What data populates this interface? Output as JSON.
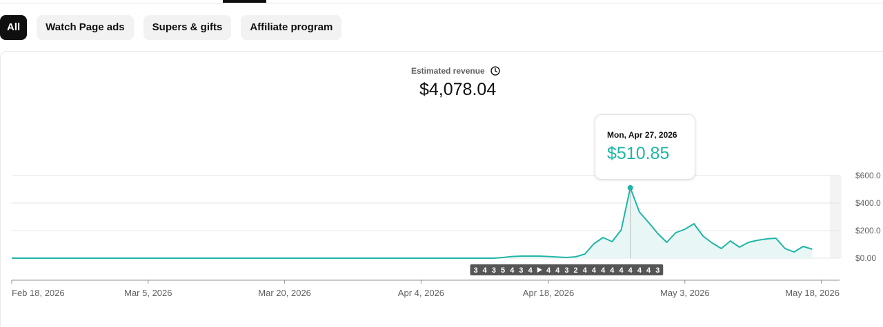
{
  "filters": {
    "chips": [
      {
        "label": "All",
        "active": true
      },
      {
        "label": "Watch Page ads",
        "active": false
      },
      {
        "label": "Supers & gifts",
        "active": false
      },
      {
        "label": "Affiliate program",
        "active": false
      }
    ]
  },
  "metric": {
    "label": "Estimated revenue",
    "value": "$4,078.04",
    "icon": "clock-icon"
  },
  "tooltip": {
    "date": "Mon, Apr 27, 2026",
    "value": "$510.85"
  },
  "colors": {
    "line": "#1eb5a6",
    "fill": "#e8f7f5",
    "marker_bg": "#555555"
  },
  "chart_data": {
    "type": "area",
    "start_date": "2026-02-18",
    "end_date": "2026-05-20",
    "x_tick_labels": [
      "Feb 18, 2026",
      "Mar 5, 2026",
      "Mar 20, 2026",
      "Apr 4, 2026",
      "Apr 18, 2026",
      "May 3, 2026",
      "May 18, 2026"
    ],
    "y_tick_labels": [
      "$600.0",
      "$400.0",
      "$200.0",
      "$0.00"
    ],
    "y_ticks": [
      600,
      400,
      200,
      0
    ],
    "ylim": [
      0,
      600
    ],
    "grid": true,
    "series": [
      {
        "values": [
          {
            "date": "2026-02-18",
            "value": 0
          },
          {
            "date": "2026-04-05",
            "value": 0
          },
          {
            "date": "2026-04-12",
            "value": 0
          },
          {
            "date": "2026-04-13",
            "value": 5
          },
          {
            "date": "2026-04-14",
            "value": 12
          },
          {
            "date": "2026-04-15",
            "value": 15
          },
          {
            "date": "2026-04-16",
            "value": 15
          },
          {
            "date": "2026-04-17",
            "value": 15
          },
          {
            "date": "2026-04-18",
            "value": 12
          },
          {
            "date": "2026-04-19",
            "value": 8
          },
          {
            "date": "2026-04-20",
            "value": 5
          },
          {
            "date": "2026-04-21",
            "value": 10
          },
          {
            "date": "2026-04-22",
            "value": 30
          },
          {
            "date": "2026-04-23",
            "value": 105
          },
          {
            "date": "2026-04-24",
            "value": 150
          },
          {
            "date": "2026-04-25",
            "value": 120
          },
          {
            "date": "2026-04-26",
            "value": 205
          },
          {
            "date": "2026-04-27",
            "value": 510.85
          },
          {
            "date": "2026-04-28",
            "value": 335
          },
          {
            "date": "2026-04-29",
            "value": 260
          },
          {
            "date": "2026-04-30",
            "value": 180
          },
          {
            "date": "2026-05-01",
            "value": 115
          },
          {
            "date": "2026-05-02",
            "value": 185
          },
          {
            "date": "2026-05-03",
            "value": 210
          },
          {
            "date": "2026-05-04",
            "value": 250
          },
          {
            "date": "2026-05-05",
            "value": 160
          },
          {
            "date": "2026-05-06",
            "value": 110
          },
          {
            "date": "2026-05-07",
            "value": 70
          },
          {
            "date": "2026-05-08",
            "value": 125
          },
          {
            "date": "2026-05-09",
            "value": 80
          },
          {
            "date": "2026-05-10",
            "value": 115
          },
          {
            "date": "2026-05-11",
            "value": 130
          },
          {
            "date": "2026-05-12",
            "value": 140
          },
          {
            "date": "2026-05-13",
            "value": 145
          },
          {
            "date": "2026-05-14",
            "value": 70
          },
          {
            "date": "2026-05-15",
            "value": 45
          },
          {
            "date": "2026-05-16",
            "value": 85
          },
          {
            "date": "2026-05-17",
            "value": 65
          }
        ]
      }
    ],
    "highlight": {
      "date": "2026-04-27",
      "value": 510.85
    },
    "markers": [
      {
        "date": "2026-04-10",
        "label": "3"
      },
      {
        "date": "2026-04-11",
        "label": "4"
      },
      {
        "date": "2026-04-12",
        "label": "3"
      },
      {
        "date": "2026-04-13",
        "label": "5"
      },
      {
        "date": "2026-04-14",
        "label": "4"
      },
      {
        "date": "2026-04-15",
        "label": "3"
      },
      {
        "date": "2026-04-16",
        "label": "4"
      },
      {
        "date": "2026-04-17",
        "label": "play"
      },
      {
        "date": "2026-04-18",
        "label": "4"
      },
      {
        "date": "2026-04-19",
        "label": "4"
      },
      {
        "date": "2026-04-20",
        "label": "3"
      },
      {
        "date": "2026-04-21",
        "label": "2"
      },
      {
        "date": "2026-04-22",
        "label": "4"
      },
      {
        "date": "2026-04-23",
        "label": "4"
      },
      {
        "date": "2026-04-24",
        "label": "4"
      },
      {
        "date": "2026-04-25",
        "label": "4"
      },
      {
        "date": "2026-04-26",
        "label": "4"
      },
      {
        "date": "2026-04-27",
        "label": "4"
      },
      {
        "date": "2026-04-28",
        "label": "4"
      },
      {
        "date": "2026-04-29",
        "label": "4"
      },
      {
        "date": "2026-04-30",
        "label": "3"
      }
    ]
  }
}
